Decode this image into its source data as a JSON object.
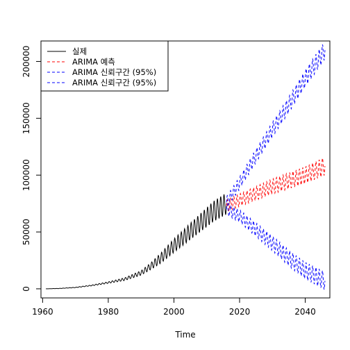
{
  "chart_data": {
    "type": "line",
    "title": "",
    "xlabel": "Time",
    "ylabel": "",
    "xlim": [
      1959.5,
      2047.5
    ],
    "ylim": [
      -8000,
      218000
    ],
    "x_ticks": [
      1960,
      1980,
      2000,
      2020,
      2040
    ],
    "x_tick_labels": [
      "1960",
      "1980",
      "2000",
      "2020",
      "2040"
    ],
    "y_ticks": [
      0,
      50000,
      100000,
      150000,
      200000
    ],
    "y_tick_labels": [
      "0",
      "50000",
      "100000",
      "150000",
      "200000"
    ],
    "grid": false,
    "legend_position": "top-left",
    "series": [
      {
        "name": "실제",
        "color": "#000000",
        "style": "solid",
        "x": [
          1961,
          1965,
          1970,
          1975,
          1980,
          1985,
          1990,
          1993,
          1996,
          2000,
          2004,
          2008,
          2012,
          2016
        ],
        "y": [
          0,
          300,
          1200,
          3000,
          5500,
          8500,
          14000,
          20000,
          27000,
          38000,
          48000,
          58000,
          68000,
          75000
        ],
        "seasonal_amplitude": [
          0,
          100,
          200,
          400,
          700,
          1200,
          2000,
          3000,
          4500,
          6000,
          7000,
          8000,
          9000,
          9500
        ]
      },
      {
        "name": "ARIMA 예측",
        "color": "#ff0000",
        "style": "dashed",
        "x": [
          2016,
          2020,
          2025,
          2030,
          2035,
          2040,
          2046
        ],
        "y": [
          73000,
          78000,
          84000,
          90000,
          95000,
          100000,
          108000
        ],
        "seasonal_amplitude": [
          5000,
          5500,
          6000,
          6500,
          7000,
          7500,
          8000
        ]
      },
      {
        "name": "ARIMA 신뢰구간 (95%)",
        "color": "#0000ff",
        "style": "dashed",
        "x": [
          2016,
          2020,
          2025,
          2030,
          2035,
          2040,
          2046
        ],
        "y": [
          76000,
          93000,
          117000,
          140000,
          162000,
          185000,
          210000
        ],
        "seasonal_amplitude": [
          5000,
          5500,
          6000,
          6500,
          7000,
          7500,
          8000
        ]
      },
      {
        "name": "ARIMA 신뢰구간 (95%)",
        "color": "#0000ff",
        "style": "dashed",
        "x": [
          2016,
          2020,
          2025,
          2030,
          2035,
          2040,
          2046
        ],
        "y": [
          70000,
          64000,
          52000,
          40000,
          27000,
          16000,
          7000
        ],
        "seasonal_amplitude": [
          5000,
          5500,
          6000,
          6500,
          7000,
          7500,
          8000
        ]
      }
    ]
  }
}
